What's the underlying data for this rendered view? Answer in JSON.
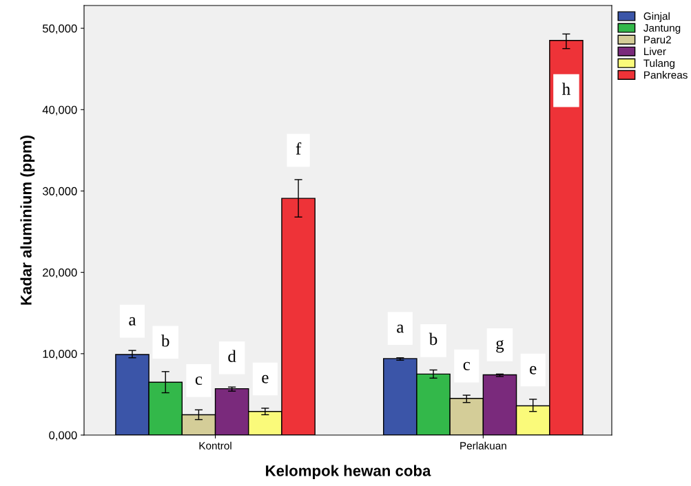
{
  "chart_data": {
    "type": "bar",
    "xlabel": "Kelompok hewan coba",
    "ylabel": "Kadar aluminium (ppm)",
    "categories": [
      "Kontrol",
      "Perlakuan"
    ],
    "series": [
      {
        "name": "Ginjal",
        "color": "#3b55a8",
        "values": [
          9900,
          9400
        ],
        "errors": [
          [
            9500,
            10400
          ],
          [
            9200,
            9500
          ]
        ],
        "value_labels": [
          "a",
          "a"
        ]
      },
      {
        "name": "Jantung",
        "color": "#33b84a",
        "values": [
          6500,
          7500
        ],
        "errors": [
          [
            5200,
            7800
          ],
          [
            7000,
            8000
          ]
        ],
        "value_labels": [
          "b",
          "b"
        ]
      },
      {
        "name": "Paru2",
        "color": "#d4cd98",
        "values": [
          2500,
          4500
        ],
        "errors": [
          [
            1900,
            3100
          ],
          [
            4000,
            4900
          ]
        ],
        "value_labels": [
          "c",
          "c"
        ]
      },
      {
        "name": "Liver",
        "color": "#7a2a7c",
        "values": [
          5700,
          7400
        ],
        "errors": [
          [
            5400,
            5900
          ],
          [
            7200,
            7500
          ]
        ],
        "value_labels": [
          "d",
          "g"
        ]
      },
      {
        "name": "Tulang",
        "color": "#fafa7a",
        "values": [
          2900,
          3600
        ],
        "errors": [
          [
            2500,
            3300
          ],
          [
            2900,
            4400
          ]
        ],
        "value_labels": [
          "e",
          "e"
        ]
      },
      {
        "name": "Pankreas",
        "color": "#ee3338",
        "values": [
          29100,
          48500
        ],
        "errors": [
          [
            26800,
            31400
          ],
          [
            47500,
            49300
          ]
        ],
        "value_labels": [
          "f",
          "h"
        ]
      }
    ],
    "ylim": [
      0,
      52800
    ],
    "yticks": [
      {
        "value": 0,
        "label": "0,000"
      },
      {
        "value": 10000,
        "label": "10,000"
      },
      {
        "value": 20000,
        "label": "20,000"
      },
      {
        "value": 30000,
        "label": "30,000"
      },
      {
        "value": 40000,
        "label": "40,000"
      },
      {
        "value": 50000,
        "label": "50,000"
      }
    ],
    "grid": false,
    "legend": "top right"
  }
}
